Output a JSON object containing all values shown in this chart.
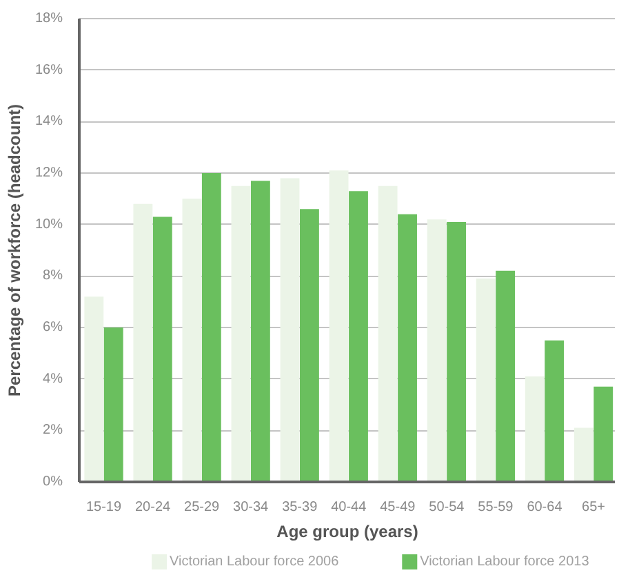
{
  "chart_data": {
    "type": "bar",
    "xlabel": "Age group (years)",
    "ylabel": "Percentage of workforce (headcount)",
    "categories": [
      "15-19",
      "20-24",
      "25-29",
      "30-34",
      "35-39",
      "40-44",
      "45-49",
      "50-54",
      "55-59",
      "60-64",
      "65+"
    ],
    "series": [
      {
        "name": "Victorian Labour force 2006",
        "color": "#ebf4e7",
        "values": [
          7.2,
          10.8,
          11.0,
          11.5,
          11.8,
          12.1,
          11.5,
          10.2,
          7.9,
          4.1,
          2.1
        ]
      },
      {
        "name": "Victorian Labour force 2013",
        "color": "#6abf5e",
        "values": [
          6.0,
          10.3,
          12.0,
          11.7,
          10.6,
          11.3,
          10.4,
          10.1,
          8.2,
          5.5,
          3.7
        ]
      }
    ],
    "ylim": [
      0,
      18
    ],
    "yticks": [
      {
        "value": 0,
        "label": "0%"
      },
      {
        "value": 2,
        "label": "2%"
      },
      {
        "value": 4,
        "label": "4%"
      },
      {
        "value": 6,
        "label": "6%"
      },
      {
        "value": 8,
        "label": "8%"
      },
      {
        "value": 10,
        "label": "10%"
      },
      {
        "value": 12,
        "label": "12%"
      },
      {
        "value": 14,
        "label": "14%"
      },
      {
        "value": 16,
        "label": "16%"
      },
      {
        "value": 18,
        "label": "18%"
      }
    ],
    "grid": "y",
    "legend": "bottom"
  }
}
